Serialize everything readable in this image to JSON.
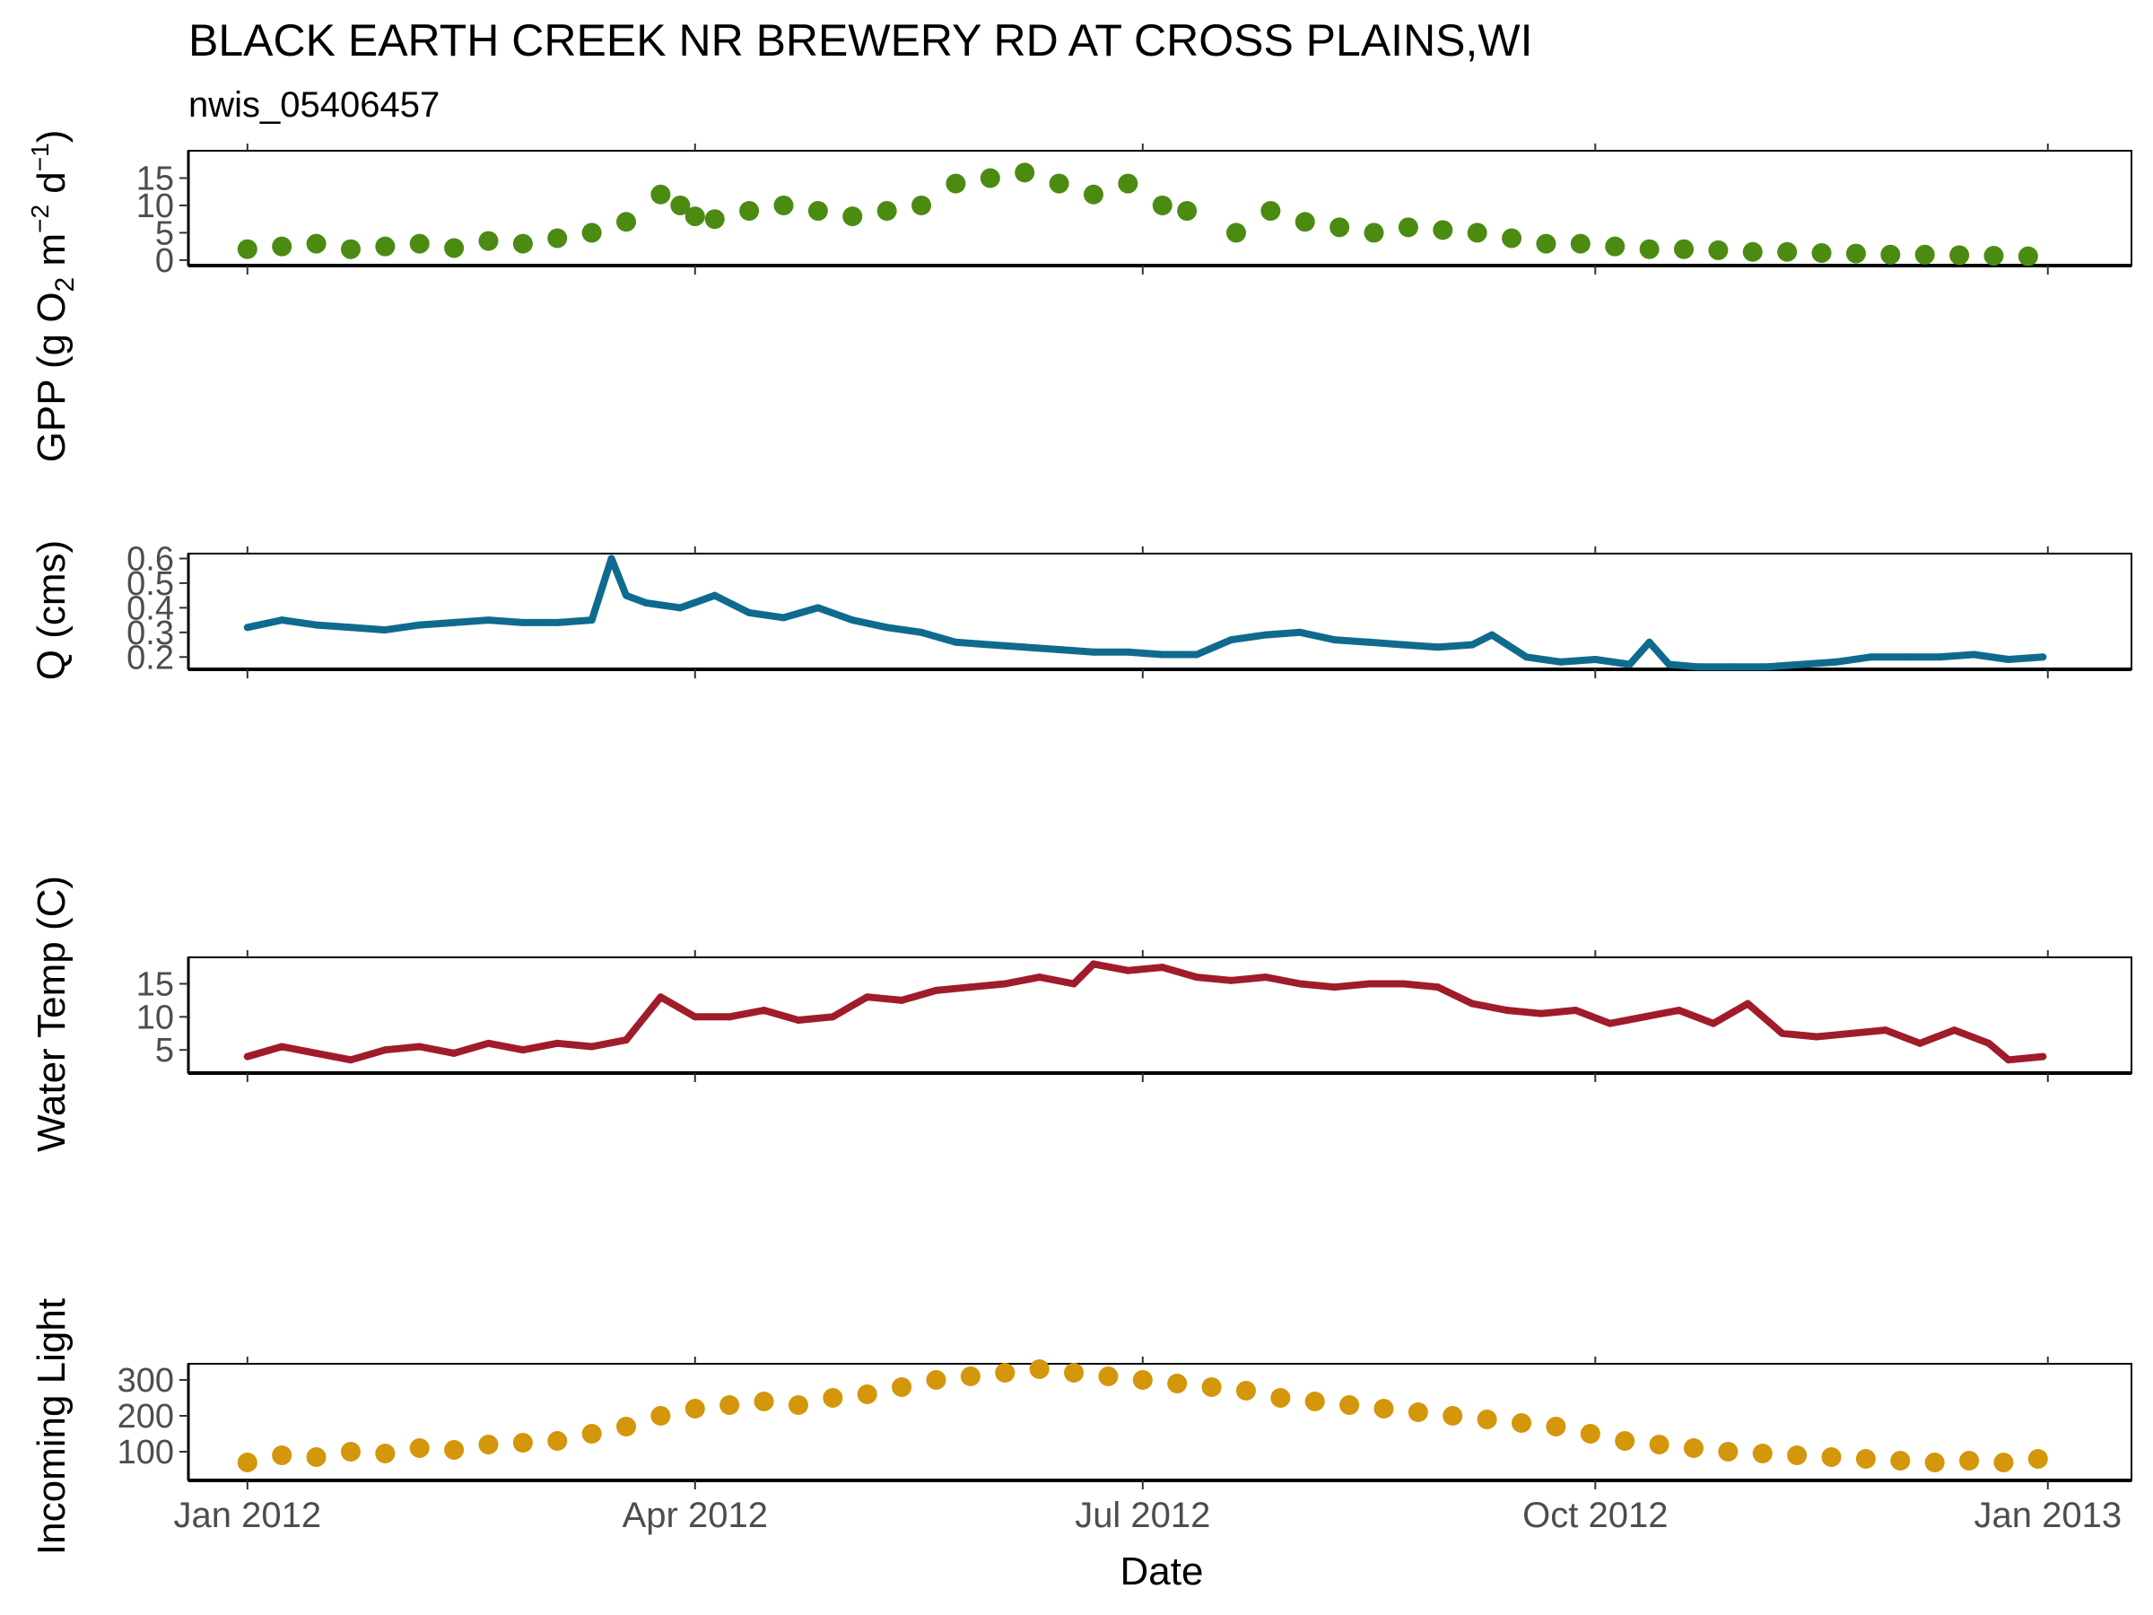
{
  "chart_data": {
    "type": "line",
    "title": "BLACK EARTH CREEK NR BREWERY RD AT CROSS PLAINS,WI",
    "subtitle": "nwis_05406457",
    "xlabel": "Date",
    "x_ticks": [
      "Jan 2012",
      "Apr 2012",
      "Jul 2012",
      "Oct 2012",
      "Jan 2013"
    ],
    "x_tick_dates": [
      "2012-01-01",
      "2012-04-01",
      "2012-07-01",
      "2012-10-01",
      "2013-01-01"
    ],
    "xlim": [
      "2011-12-20",
      "2013-01-18"
    ],
    "grid": false,
    "panels": [
      {
        "id": "gpp",
        "type": "scatter",
        "ylabel": "GPP (g O2 m-2 d-1)",
        "ylabel_parts": [
          "GPP (g  O",
          "2",
          " m",
          "−2",
          " d",
          "−1",
          ")"
        ],
        "ylim": [
          -1,
          20
        ],
        "yticks": [
          0,
          5,
          10,
          15
        ],
        "color": "#4b8b12",
        "x": [
          "2012-01-01",
          "2012-01-08",
          "2012-01-15",
          "2012-01-22",
          "2012-01-29",
          "2012-02-05",
          "2012-02-12",
          "2012-02-19",
          "2012-02-26",
          "2012-03-04",
          "2012-03-11",
          "2012-03-18",
          "2012-03-25",
          "2012-03-29",
          "2012-04-01",
          "2012-04-05",
          "2012-04-12",
          "2012-04-19",
          "2012-04-26",
          "2012-05-03",
          "2012-05-10",
          "2012-05-17",
          "2012-05-24",
          "2012-05-31",
          "2012-06-07",
          "2012-06-14",
          "2012-06-21",
          "2012-06-28",
          "2012-07-05",
          "2012-07-10",
          "2012-07-20",
          "2012-07-27",
          "2012-08-03",
          "2012-08-10",
          "2012-08-17",
          "2012-08-24",
          "2012-08-31",
          "2012-09-07",
          "2012-09-14",
          "2012-09-21",
          "2012-09-28",
          "2012-10-05",
          "2012-10-12",
          "2012-10-19",
          "2012-10-26",
          "2012-11-02",
          "2012-11-09",
          "2012-11-16",
          "2012-11-23",
          "2012-11-30",
          "2012-12-07",
          "2012-12-14",
          "2012-12-21",
          "2012-12-28"
        ],
        "values": [
          2,
          2.5,
          3,
          2,
          2.5,
          3,
          2.2,
          3.5,
          3,
          4,
          5,
          7,
          12,
          10,
          8,
          7.5,
          9,
          10,
          9,
          8,
          9,
          10,
          14,
          15,
          16,
          14,
          12,
          14,
          10,
          9,
          5,
          9,
          7,
          6,
          5,
          6,
          5.5,
          5,
          4,
          3,
          3,
          2.5,
          2,
          2,
          1.8,
          1.5,
          1.5,
          1.3,
          1.2,
          1,
          1,
          0.9,
          0.8,
          0.7
        ]
      },
      {
        "id": "q",
        "type": "line",
        "ylabel": "Q (cms)",
        "ylim": [
          0.15,
          0.62
        ],
        "yticks": [
          0.2,
          0.3,
          0.4,
          0.5,
          0.6
        ],
        "color": "#0f6b8e",
        "x": [
          "2012-01-01",
          "2012-01-08",
          "2012-01-15",
          "2012-01-22",
          "2012-01-29",
          "2012-02-05",
          "2012-02-12",
          "2012-02-19",
          "2012-02-26",
          "2012-03-04",
          "2012-03-11",
          "2012-03-15",
          "2012-03-18",
          "2012-03-22",
          "2012-03-29",
          "2012-04-05",
          "2012-04-12",
          "2012-04-19",
          "2012-04-26",
          "2012-05-03",
          "2012-05-10",
          "2012-05-17",
          "2012-05-24",
          "2012-05-31",
          "2012-06-07",
          "2012-06-14",
          "2012-06-21",
          "2012-06-28",
          "2012-07-05",
          "2012-07-12",
          "2012-07-19",
          "2012-07-26",
          "2012-08-02",
          "2012-08-09",
          "2012-08-16",
          "2012-08-23",
          "2012-08-30",
          "2012-09-06",
          "2012-09-10",
          "2012-09-17",
          "2012-09-24",
          "2012-10-01",
          "2012-10-08",
          "2012-10-12",
          "2012-10-16",
          "2012-10-22",
          "2012-10-29",
          "2012-11-05",
          "2012-11-12",
          "2012-11-19",
          "2012-11-26",
          "2012-12-03",
          "2012-12-10",
          "2012-12-17",
          "2012-12-24",
          "2012-12-31"
        ],
        "values": [
          0.32,
          0.35,
          0.33,
          0.32,
          0.31,
          0.33,
          0.34,
          0.35,
          0.34,
          0.34,
          0.35,
          0.6,
          0.45,
          0.42,
          0.4,
          0.45,
          0.38,
          0.36,
          0.4,
          0.35,
          0.32,
          0.3,
          0.26,
          0.25,
          0.24,
          0.23,
          0.22,
          0.22,
          0.21,
          0.21,
          0.27,
          0.29,
          0.3,
          0.27,
          0.26,
          0.25,
          0.24,
          0.25,
          0.29,
          0.2,
          0.18,
          0.19,
          0.17,
          0.26,
          0.17,
          0.16,
          0.16,
          0.16,
          0.17,
          0.18,
          0.2,
          0.2,
          0.2,
          0.21,
          0.19,
          0.2
        ]
      },
      {
        "id": "water-temp",
        "type": "line",
        "ylabel": "Water Temp (C)",
        "ylim": [
          1.5,
          19
        ],
        "yticks": [
          5,
          10,
          15
        ],
        "color": "#a01c2a",
        "x": [
          "2012-01-01",
          "2012-01-08",
          "2012-01-15",
          "2012-01-22",
          "2012-01-29",
          "2012-02-05",
          "2012-02-12",
          "2012-02-19",
          "2012-02-26",
          "2012-03-04",
          "2012-03-11",
          "2012-03-18",
          "2012-03-25",
          "2012-04-01",
          "2012-04-08",
          "2012-04-15",
          "2012-04-22",
          "2012-04-29",
          "2012-05-06",
          "2012-05-13",
          "2012-05-20",
          "2012-05-27",
          "2012-06-03",
          "2012-06-10",
          "2012-06-17",
          "2012-06-21",
          "2012-06-28",
          "2012-07-05",
          "2012-07-12",
          "2012-07-19",
          "2012-07-26",
          "2012-08-02",
          "2012-08-09",
          "2012-08-16",
          "2012-08-23",
          "2012-08-30",
          "2012-09-06",
          "2012-09-13",
          "2012-09-20",
          "2012-09-27",
          "2012-10-04",
          "2012-10-11",
          "2012-10-18",
          "2012-10-25",
          "2012-11-01",
          "2012-11-08",
          "2012-11-15",
          "2012-11-22",
          "2012-11-29",
          "2012-12-06",
          "2012-12-13",
          "2012-12-20",
          "2012-12-24",
          "2012-12-31"
        ],
        "values": [
          4,
          5.5,
          4.5,
          3.5,
          5,
          5.5,
          4.5,
          6,
          5,
          6,
          5.5,
          6.5,
          13,
          10,
          10,
          11,
          9.5,
          10,
          13,
          12.5,
          14,
          14.5,
          15,
          16,
          15,
          18,
          17,
          17.5,
          16,
          15.5,
          16,
          15,
          14.5,
          15,
          15,
          14.5,
          12,
          11,
          10.5,
          11,
          9,
          10,
          11,
          9,
          12,
          7.5,
          7,
          7.5,
          8,
          6,
          8,
          6,
          3.5,
          4
        ]
      },
      {
        "id": "incoming-light",
        "type": "scatter",
        "ylabel": "Incoming Light",
        "ylim": [
          20,
          345
        ],
        "yticks": [
          100,
          200,
          300
        ],
        "color": "#d4960a",
        "x": [
          "2012-01-01",
          "2012-01-08",
          "2012-01-15",
          "2012-01-22",
          "2012-01-29",
          "2012-02-05",
          "2012-02-12",
          "2012-02-19",
          "2012-02-26",
          "2012-03-04",
          "2012-03-11",
          "2012-03-18",
          "2012-03-25",
          "2012-04-01",
          "2012-04-08",
          "2012-04-15",
          "2012-04-22",
          "2012-04-29",
          "2012-05-06",
          "2012-05-13",
          "2012-05-20",
          "2012-05-27",
          "2012-06-03",
          "2012-06-10",
          "2012-06-17",
          "2012-06-24",
          "2012-07-01",
          "2012-07-08",
          "2012-07-15",
          "2012-07-22",
          "2012-07-29",
          "2012-08-05",
          "2012-08-12",
          "2012-08-19",
          "2012-08-26",
          "2012-09-02",
          "2012-09-09",
          "2012-09-16",
          "2012-09-23",
          "2012-09-30",
          "2012-10-07",
          "2012-10-14",
          "2012-10-21",
          "2012-10-28",
          "2012-11-04",
          "2012-11-11",
          "2012-11-18",
          "2012-11-25",
          "2012-12-02",
          "2012-12-09",
          "2012-12-16",
          "2012-12-23",
          "2012-12-30"
        ],
        "values": [
          70,
          90,
          85,
          100,
          95,
          110,
          105,
          120,
          125,
          130,
          150,
          170,
          200,
          220,
          230,
          240,
          230,
          250,
          260,
          280,
          300,
          310,
          320,
          330,
          320,
          310,
          300,
          290,
          280,
          270,
          250,
          240,
          230,
          220,
          210,
          200,
          190,
          180,
          170,
          150,
          130,
          120,
          110,
          100,
          95,
          90,
          85,
          80,
          75,
          70,
          75,
          70,
          80
        ]
      }
    ]
  }
}
